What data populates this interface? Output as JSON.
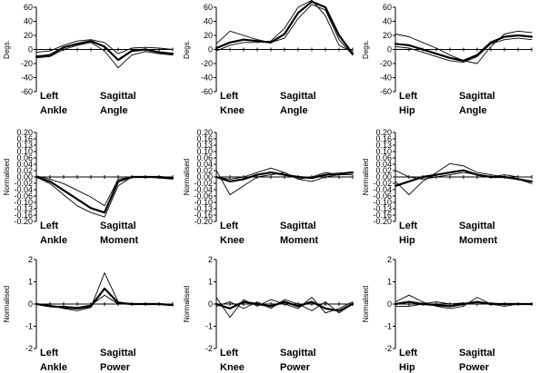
{
  "chart_data": [
    {
      "type": "line",
      "ylabel": "Degs.",
      "ylim": [
        -60,
        60
      ],
      "yticks": [
        "60",
        "40",
        "20",
        "0",
        "-20",
        "-40",
        "-60"
      ],
      "caption": {
        "l1": "Left",
        "l2": "Ankle",
        "r1": "Sagittal",
        "r2": "Angle"
      },
      "x": [
        0,
        10,
        20,
        30,
        40,
        50,
        60,
        70,
        80,
        90,
        100
      ],
      "series": [
        {
          "values": [
            -10,
            -8,
            3,
            8,
            12,
            4,
            -15,
            -2,
            0,
            -4,
            -6
          ],
          "weight": "bold"
        },
        {
          "values": [
            -12,
            -10,
            0,
            6,
            10,
            -2,
            -26,
            -8,
            -3,
            -6,
            -8
          ],
          "weight": "thin"
        },
        {
          "values": [
            -4,
            -2,
            6,
            12,
            14,
            10,
            -6,
            2,
            3,
            2,
            0
          ],
          "weight": "thin"
        }
      ]
    },
    {
      "type": "line",
      "ylabel": "Degs.",
      "ylim": [
        -60,
        60
      ],
      "yticks": [
        "60",
        "40",
        "20",
        "0",
        "-20",
        "-40",
        "-60"
      ],
      "caption": {
        "l1": "Left",
        "l2": "Knee",
        "r1": "Sagittal",
        "r2": "Angle"
      },
      "x": [
        0,
        10,
        20,
        30,
        40,
        50,
        60,
        70,
        80,
        90,
        100
      ],
      "series": [
        {
          "values": [
            2,
            10,
            14,
            12,
            10,
            22,
            52,
            68,
            60,
            20,
            -6
          ],
          "weight": "bold"
        },
        {
          "values": [
            8,
            26,
            20,
            14,
            10,
            16,
            44,
            64,
            56,
            14,
            -8
          ],
          "weight": "thin"
        },
        {
          "values": [
            -2,
            6,
            10,
            10,
            12,
            30,
            60,
            70,
            48,
            6,
            -4
          ],
          "weight": "thin"
        }
      ]
    },
    {
      "type": "line",
      "ylabel": "Degs.",
      "ylim": [
        -60,
        60
      ],
      "yticks": [
        "60",
        "40",
        "20",
        "0",
        "-20",
        "-40",
        "-60"
      ],
      "caption": {
        "l1": "Left",
        "l2": "Hip",
        "r1": "Sagittal",
        "r2": "Angle"
      },
      "x": [
        0,
        10,
        20,
        30,
        40,
        50,
        60,
        70,
        80,
        90,
        100
      ],
      "series": [
        {
          "values": [
            8,
            6,
            0,
            -6,
            -12,
            -16,
            -8,
            10,
            18,
            20,
            18
          ],
          "weight": "bold"
        },
        {
          "values": [
            22,
            18,
            10,
            2,
            -8,
            -16,
            -20,
            4,
            22,
            26,
            24
          ],
          "weight": "thin"
        },
        {
          "values": [
            4,
            2,
            -4,
            -10,
            -16,
            -18,
            -10,
            8,
            14,
            16,
            14
          ],
          "weight": "thin"
        }
      ]
    },
    {
      "type": "line",
      "ylabel": "Normalised",
      "ylim": [
        -0.2,
        0.2
      ],
      "yticks": [
        "0.20",
        "0.16",
        "0.13",
        "0.10",
        "0.06",
        "0.04",
        "0.02",
        "0.00",
        "-0.02",
        "-0.04",
        "-0.06",
        "-0.10",
        "-0.13",
        "-0.16",
        "-0.20"
      ],
      "caption": {
        "l1": "Left",
        "l2": "Ankle",
        "r1": "Sagittal",
        "r2": "Moment"
      },
      "x": [
        0,
        10,
        20,
        30,
        40,
        50,
        60,
        70,
        80,
        90,
        100
      ],
      "series": [
        {
          "values": [
            0,
            -0.02,
            -0.06,
            -0.1,
            -0.14,
            -0.16,
            -0.02,
            0,
            0,
            0,
            -0.005
          ],
          "weight": "bold"
        },
        {
          "values": [
            0,
            -0.03,
            -0.08,
            -0.13,
            -0.16,
            -0.18,
            -0.04,
            0,
            0,
            -0.005,
            -0.01
          ],
          "weight": "thin"
        },
        {
          "values": [
            0.005,
            -0.01,
            -0.03,
            -0.06,
            -0.09,
            -0.13,
            -0.01,
            0,
            0,
            0,
            0
          ],
          "weight": "thin"
        }
      ]
    },
    {
      "type": "line",
      "ylabel": "Normalised",
      "ylim": [
        -0.2,
        0.2
      ],
      "yticks": [
        "0.20",
        "0.16",
        "0.13",
        "0.10",
        "0.06",
        "0.04",
        "0.02",
        "0.00",
        "-0.02",
        "-0.04",
        "-0.06",
        "-0.10",
        "-0.13",
        "-0.16",
        "-0.20"
      ],
      "caption": {
        "l1": "Left",
        "l2": "Knee",
        "r1": "Sagittal",
        "r2": "Moment"
      },
      "x": [
        0,
        10,
        20,
        30,
        40,
        50,
        60,
        70,
        80,
        90,
        100
      ],
      "series": [
        {
          "values": [
            0,
            -0.02,
            -0.01,
            0.01,
            0.02,
            0.01,
            0,
            -0.005,
            0.01,
            0.015,
            0.02
          ],
          "weight": "bold"
        },
        {
          "values": [
            0.03,
            -0.08,
            -0.04,
            0,
            0.01,
            0.02,
            -0.01,
            -0.02,
            0,
            0.01,
            0.02
          ],
          "weight": "thin"
        },
        {
          "values": [
            0,
            -0.01,
            0,
            0.02,
            0.04,
            0.02,
            -0.01,
            0,
            0.02,
            0.01,
            0.01
          ],
          "weight": "thin"
        }
      ]
    },
    {
      "type": "line",
      "ylabel": "Normalised",
      "ylim": [
        -0.2,
        0.2
      ],
      "yticks": [
        "0.20",
        "0.16",
        "0.13",
        "0.10",
        "0.06",
        "0.04",
        "0.02",
        "0.00",
        "-0.02",
        "-0.04",
        "-0.06",
        "-0.10",
        "-0.13",
        "-0.16",
        "-0.20"
      ],
      "caption": {
        "l1": "Left",
        "l2": "Hip",
        "r1": "Sagittal",
        "r2": "Moment"
      },
      "x": [
        0,
        10,
        20,
        30,
        40,
        50,
        60,
        70,
        80,
        90,
        100
      ],
      "series": [
        {
          "values": [
            -0.04,
            -0.02,
            0,
            0.01,
            0.02,
            0.03,
            0.01,
            0,
            0,
            -0.01,
            -0.02
          ],
          "weight": "bold"
        },
        {
          "values": [
            -0.02,
            -0.08,
            -0.02,
            0.02,
            0.06,
            0.05,
            0.02,
            0.01,
            0,
            -0.01,
            -0.03
          ],
          "weight": "thin"
        },
        {
          "values": [
            0.03,
            0,
            -0.01,
            0,
            0.01,
            0.02,
            0.01,
            0,
            0.01,
            0,
            0
          ],
          "weight": "thin"
        }
      ]
    },
    {
      "type": "line",
      "ylabel": "Normalised",
      "ylim": [
        -2,
        2
      ],
      "yticks": [
        "2",
        "1",
        "0",
        "-1",
        "-2"
      ],
      "caption": {
        "l1": "Left",
        "l2": "Ankle",
        "r1": "Sagittal",
        "r2": "Power"
      },
      "x": [
        0,
        10,
        20,
        30,
        40,
        50,
        60,
        70,
        80,
        90,
        100
      ],
      "series": [
        {
          "values": [
            0,
            -0.1,
            -0.15,
            -0.2,
            -0.1,
            0.7,
            0.05,
            0,
            0,
            0,
            -0.05
          ],
          "weight": "bold"
        },
        {
          "values": [
            0,
            -0.05,
            -0.2,
            -0.3,
            -0.15,
            1.4,
            0.1,
            0,
            0,
            0,
            -0.05
          ],
          "weight": "thin"
        },
        {
          "values": [
            0,
            -0.1,
            -0.1,
            -0.15,
            -0.05,
            0.4,
            0,
            0,
            0,
            0,
            0
          ],
          "weight": "thin"
        }
      ]
    },
    {
      "type": "line",
      "ylabel": "Normalised",
      "ylim": [
        -2,
        2
      ],
      "yticks": [
        "2",
        "1",
        "0",
        "-1",
        "-2"
      ],
      "caption": {
        "l1": "Left",
        "l2": "Knee",
        "r1": "Sagittal",
        "r2": "Power"
      },
      "x": [
        0,
        10,
        20,
        30,
        40,
        50,
        60,
        70,
        80,
        90,
        100
      ],
      "series": [
        {
          "values": [
            0,
            -0.2,
            0.1,
            0,
            -0.1,
            0.1,
            -0.1,
            0.1,
            -0.2,
            -0.3,
            0
          ],
          "weight": "bold"
        },
        {
          "values": [
            0.3,
            -0.6,
            0.2,
            -0.1,
            0.2,
            0,
            -0.2,
            0.3,
            -0.4,
            -0.2,
            0.1
          ],
          "weight": "thin"
        },
        {
          "values": [
            -0.1,
            0.1,
            -0.2,
            0.1,
            -0.2,
            0.2,
            0,
            -0.3,
            0.1,
            -0.4,
            0
          ],
          "weight": "thin"
        }
      ]
    },
    {
      "type": "line",
      "ylabel": "Normalised",
      "ylim": [
        -2,
        2
      ],
      "yticks": [
        "2",
        "1",
        "0",
        "-1",
        "-2"
      ],
      "caption": {
        "l1": "Left",
        "l2": "Hip",
        "r1": "Sagittal",
        "r2": "Power"
      },
      "x": [
        0,
        10,
        20,
        30,
        40,
        50,
        60,
        70,
        80,
        90,
        100
      ],
      "series": [
        {
          "values": [
            0,
            0.1,
            0,
            -0.05,
            -0.1,
            0,
            0.1,
            0,
            0,
            0,
            0
          ],
          "weight": "bold"
        },
        {
          "values": [
            0.1,
            0.4,
            0.1,
            -0.1,
            -0.2,
            -0.1,
            0.3,
            0,
            -0.1,
            0,
            0
          ],
          "weight": "thin"
        },
        {
          "values": [
            -0.1,
            -0.1,
            0,
            0.1,
            0,
            0.05,
            0,
            0.05,
            0,
            0,
            0
          ],
          "weight": "thin"
        }
      ]
    }
  ]
}
